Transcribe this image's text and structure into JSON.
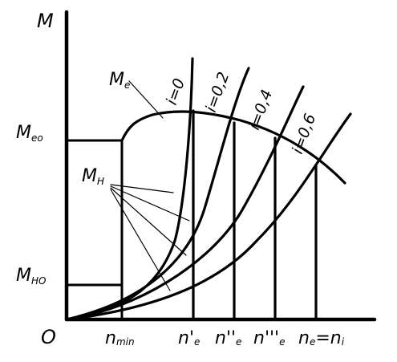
{
  "axes": {
    "y_symbol": "M",
    "origin": "O"
  },
  "y_labels": [
    {
      "main": "M",
      "sub": "eo"
    },
    {
      "main": "M",
      "sub": "HO"
    }
  ],
  "x_labels": [
    {
      "main": "n",
      "sub": "min"
    },
    {
      "main": "n'",
      "sub": "e"
    },
    {
      "main": "n''",
      "sub": "e"
    },
    {
      "main": "n'''",
      "sub": "e"
    },
    {
      "main": "n",
      "sub": "e",
      "tail": "=n",
      "tail_sub": "i"
    }
  ],
  "curve_labels": {
    "engine_torque": {
      "main": "M",
      "sub": "e"
    },
    "resistance_torque": {
      "main": "M",
      "sub": "H"
    }
  },
  "slope_labels": [
    "i=0",
    "i=0,2",
    "i=0,4",
    "i=0,6"
  ]
}
